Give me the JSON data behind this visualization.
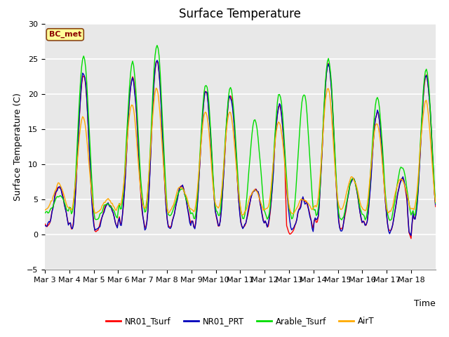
{
  "title": "Surface Temperature",
  "ylabel": "Surface Temperature (C)",
  "xlabel": "Time",
  "ylim": [
    -5,
    30
  ],
  "annotation": "BC_met",
  "legend": [
    "NR01_Tsurf",
    "NR01_PRT",
    "Arable_Tsurf",
    "AirT"
  ],
  "colors": [
    "#ff0000",
    "#0000bb",
    "#00dd00",
    "#ffaa00"
  ],
  "xtick_labels": [
    "Mar 3",
    "Mar 4",
    "Mar 5",
    "Mar 6",
    "Mar 7",
    "Mar 8",
    "Mar 9",
    "Mar 10",
    "Mar 11",
    "Mar 12",
    "Mar 13",
    "Mar 14",
    "Mar 15",
    "Mar 16",
    "Mar 17",
    "Mar 18"
  ],
  "background_color": "#e8e8e8",
  "title_fontsize": 12,
  "axis_fontsize": 9,
  "tick_fontsize": 8
}
